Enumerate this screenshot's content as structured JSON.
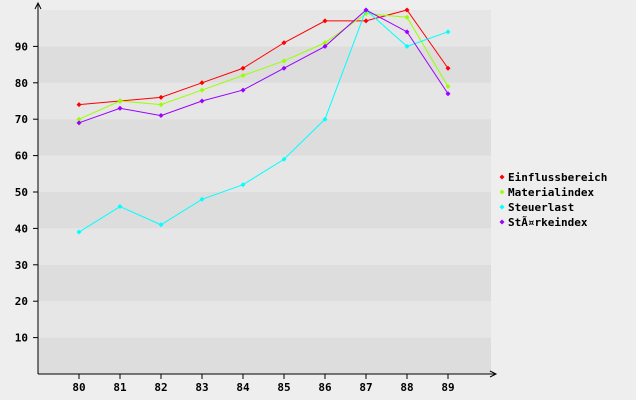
{
  "chart_data": {
    "type": "line",
    "title": "",
    "xlabel": "",
    "ylabel": "",
    "categories": [
      "80",
      "81",
      "82",
      "83",
      "84",
      "85",
      "86",
      "87",
      "88",
      "89"
    ],
    "yticks": [
      "10",
      "20",
      "30",
      "40",
      "50",
      "60",
      "70",
      "80",
      "90"
    ],
    "ylim": [
      0,
      100
    ],
    "grid": "horizontal bands",
    "legend_position": "right",
    "series": [
      {
        "name": "Einflussbereich",
        "color": "#ff0000",
        "values": [
          74,
          75,
          76,
          80,
          84,
          91,
          97,
          97,
          100,
          84
        ]
      },
      {
        "name": "Materialindex",
        "color": "#99ff00",
        "values": [
          70,
          75,
          74,
          78,
          82,
          86,
          91,
          99,
          98,
          79
        ]
      },
      {
        "name": "Steuerlast",
        "color": "#00ffff",
        "values": [
          39,
          46,
          41,
          48,
          52,
          59,
          70,
          100,
          90,
          94
        ]
      },
      {
        "name": "StÃ¤rkeindex",
        "color": "#9900ff",
        "values": [
          69,
          73,
          71,
          75,
          78,
          84,
          90,
          100,
          94,
          77
        ]
      }
    ]
  }
}
